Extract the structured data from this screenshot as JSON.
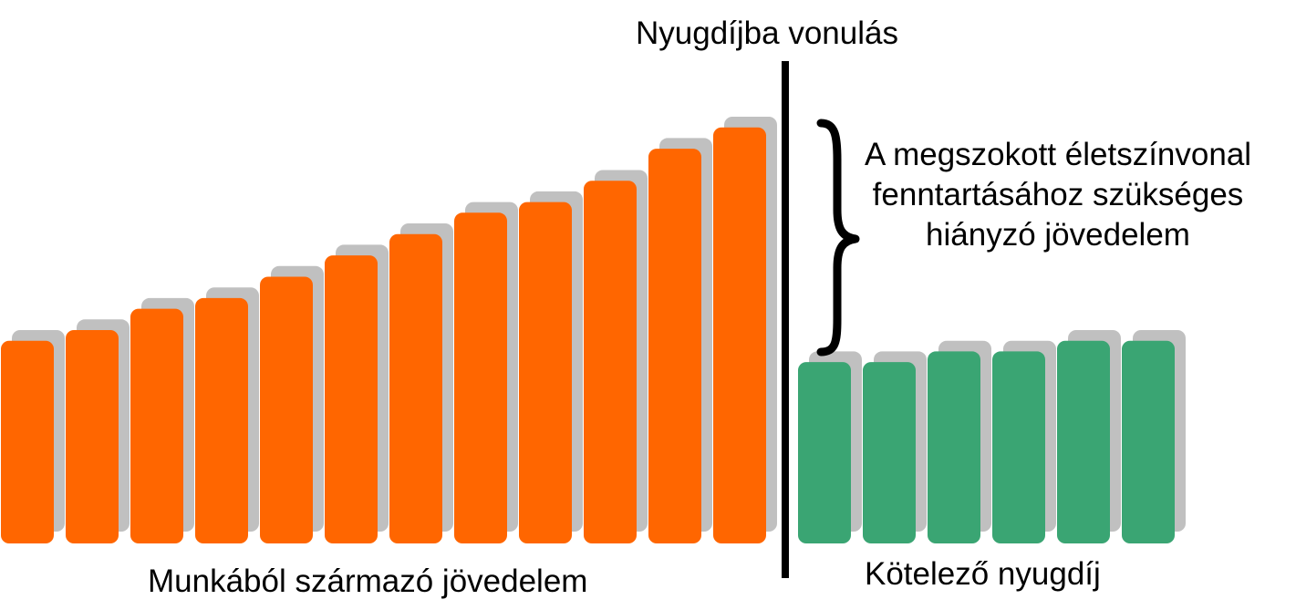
{
  "chart_data": {
    "type": "bar",
    "series": [
      {
        "name": "Munkából származó jövedelem",
        "values": [
          19,
          20,
          22,
          23,
          25,
          27,
          29,
          31,
          32,
          34,
          37,
          39
        ],
        "shadow_values": [
          20,
          21,
          23,
          24,
          26,
          28,
          30,
          32,
          33,
          35,
          38,
          40
        ],
        "color": "#ff6600"
      },
      {
        "name": "Kötelező nyugdíj",
        "values": [
          17,
          17,
          18,
          18,
          19,
          19
        ],
        "shadow_values": [
          18,
          18,
          19,
          19,
          20,
          20
        ],
        "color": "#3aa573"
      }
    ],
    "shadow_color": "#c0c0c0",
    "ylim": [
      0,
      40
    ],
    "axes": "none",
    "grid": false,
    "legend": "none",
    "annotations": {
      "retirement": "Nyugdíjba vonulás",
      "gap_lines": [
        "A megszokott életszínvonal",
        "fenntartásához szükséges",
        "hiányzó jövedelem"
      ],
      "work_income": "Munkából származó jövedelem",
      "mandatory_pension": "Kötelező nyugdíj"
    }
  }
}
